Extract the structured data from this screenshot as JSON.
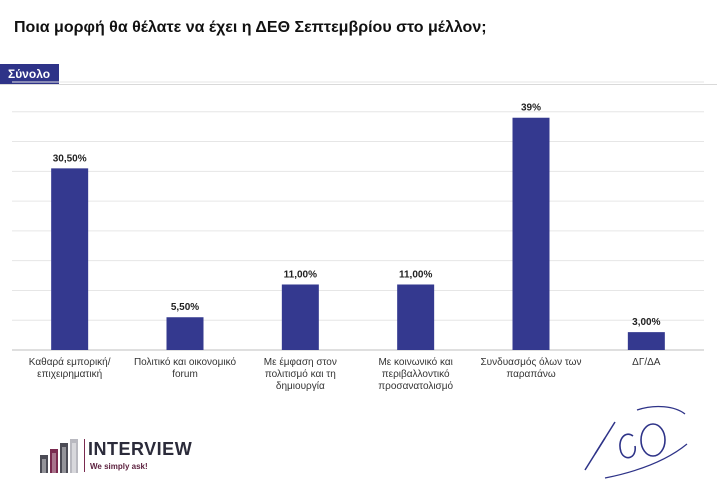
{
  "header": {
    "title": "Ποια μορφή θα θέλατε να έχει η ΔΕΘ Σεπτεμβρίου στο μέλλον;"
  },
  "badge": {
    "label": "Σύνολο",
    "color": "#2e3388"
  },
  "chart_data": {
    "type": "bar",
    "categories": [
      "Καθαρά εμπορική/επιχειρηματική",
      "Πολιτικό και οικονομικό forum",
      "Με έμφαση στον πολιτισμό και τη δημιουργία",
      "Με κοινωνικό και περιβαλλοντικό προσανατολισμό",
      "Συνδυασμός όλων των παραπάνω",
      "ΔΓ/ΔΑ"
    ],
    "values": [
      30.5,
      5.5,
      11.0,
      11.0,
      39.0,
      3.0
    ],
    "data_labels": [
      "30,50%",
      "5,50%",
      "11,00%",
      "11,00%",
      "39%",
      "3,00%"
    ],
    "ylim": [
      0,
      45
    ],
    "grid": true,
    "bar_color": "#34398f"
  },
  "logo": {
    "name": "INTERVIEW",
    "tagline": "We simply ask!"
  },
  "colors": {
    "accent": "#2e3388",
    "logo_accent": "#7a2a4f"
  }
}
